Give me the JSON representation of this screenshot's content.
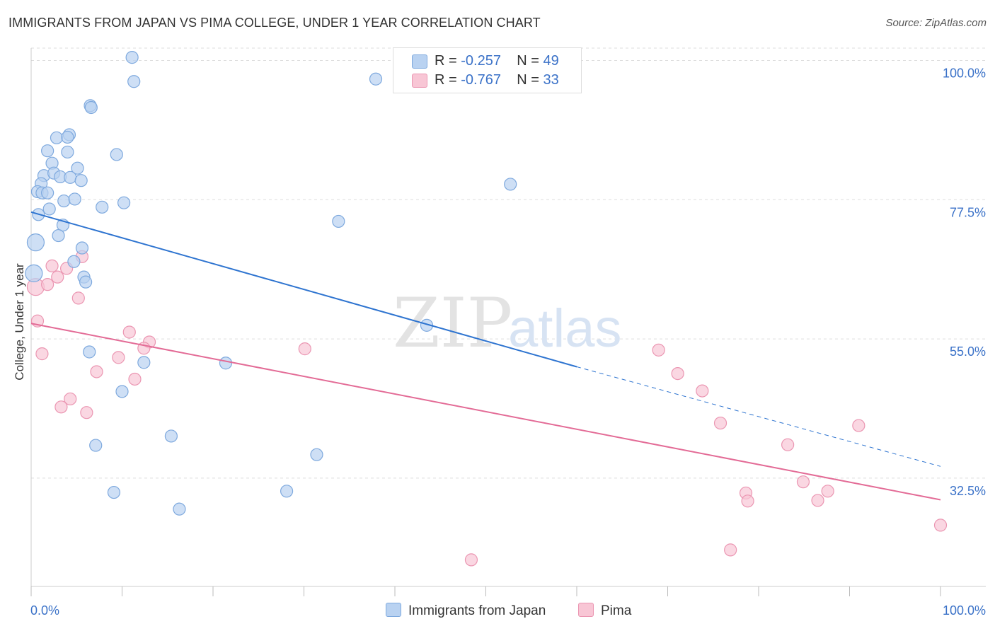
{
  "header": {
    "title": "IMMIGRANTS FROM JAPAN VS PIMA COLLEGE, UNDER 1 YEAR CORRELATION CHART",
    "source": "Source: ZipAtlas.com"
  },
  "watermark": {
    "zip": "ZIP",
    "atlas": "atlas"
  },
  "legend": {
    "r_label": "R =",
    "n_label": "N =",
    "rows": [
      {
        "r": "-0.257",
        "n": "49"
      },
      {
        "r": "-0.767",
        "n": "33"
      }
    ]
  },
  "colors": {
    "blue_fill": "#b9d2f1",
    "blue_stroke": "#7ea9de",
    "blue_line": "#2e74d0",
    "pink_fill": "#f8c6d5",
    "pink_stroke": "#eb96b2",
    "pink_line": "#e36b96",
    "tick_label": "#3b72c8",
    "grid": "#dddddd"
  },
  "chart_data": {
    "type": "scatter",
    "title": "IMMIGRANTS FROM JAPAN VS PIMA COLLEGE, UNDER 1 YEAR CORRELATION CHART",
    "xlabel": "",
    "ylabel": "College, Under 1 year",
    "xlim": [
      0,
      100
    ],
    "ylim": [
      15,
      102
    ],
    "x_tick_labels": [
      "0.0%",
      "100.0%"
    ],
    "y_ticks": [
      32.5,
      55.0,
      77.5,
      100.0
    ],
    "y_tick_labels": [
      "32.5%",
      "55.0%",
      "77.5%",
      "100.0%"
    ],
    "grid": true,
    "legend_position": "top-center",
    "series": [
      {
        "name": "Immigrants from Japan",
        "r": -0.257,
        "n": 49,
        "points": [
          [
            11.1,
            100.5
          ],
          [
            11.3,
            96.6
          ],
          [
            37.9,
            97.0
          ],
          [
            6.5,
            92.7
          ],
          [
            6.6,
            92.4
          ],
          [
            4.2,
            88.0
          ],
          [
            2.8,
            87.5
          ],
          [
            4.0,
            87.6
          ],
          [
            9.4,
            84.8
          ],
          [
            1.8,
            85.4
          ],
          [
            4.0,
            85.2
          ],
          [
            2.3,
            83.4
          ],
          [
            5.1,
            82.6
          ],
          [
            1.4,
            81.4
          ],
          [
            2.5,
            81.8
          ],
          [
            3.2,
            81.2
          ],
          [
            4.3,
            81.1
          ],
          [
            5.5,
            80.6
          ],
          [
            1.1,
            80.1
          ],
          [
            52.7,
            80.0
          ],
          [
            0.7,
            78.8
          ],
          [
            1.2,
            78.6
          ],
          [
            1.8,
            78.6
          ],
          [
            3.6,
            77.3
          ],
          [
            4.8,
            77.6
          ],
          [
            10.2,
            77.0
          ],
          [
            7.8,
            76.3
          ],
          [
            2.0,
            76.0
          ],
          [
            0.8,
            75.1
          ],
          [
            33.8,
            74.0
          ],
          [
            3.5,
            73.4
          ],
          [
            3.0,
            71.7
          ],
          [
            0.5,
            70.6
          ],
          [
            5.6,
            69.7
          ],
          [
            4.7,
            67.5
          ],
          [
            0.3,
            65.6
          ],
          [
            5.8,
            65.0
          ],
          [
            6.0,
            64.2
          ],
          [
            43.5,
            57.2
          ],
          [
            6.4,
            52.9
          ],
          [
            12.4,
            51.2
          ],
          [
            21.4,
            51.1
          ],
          [
            10.0,
            46.5
          ],
          [
            15.4,
            39.3
          ],
          [
            7.1,
            37.8
          ],
          [
            31.4,
            36.3
          ],
          [
            9.1,
            30.2
          ],
          [
            28.1,
            30.4
          ],
          [
            16.3,
            27.5
          ]
        ]
      },
      {
        "name": "Pima",
        "r": -0.767,
        "n": 33,
        "points": [
          [
            5.6,
            68.3
          ],
          [
            2.3,
            66.8
          ],
          [
            3.9,
            66.4
          ],
          [
            2.9,
            65.0
          ],
          [
            0.5,
            63.4
          ],
          [
            1.8,
            63.8
          ],
          [
            5.2,
            61.6
          ],
          [
            0.7,
            57.9
          ],
          [
            10.8,
            56.1
          ],
          [
            13.0,
            54.5
          ],
          [
            12.4,
            53.5
          ],
          [
            30.1,
            53.4
          ],
          [
            69.0,
            53.2
          ],
          [
            1.2,
            52.6
          ],
          [
            9.6,
            52.0
          ],
          [
            7.2,
            49.7
          ],
          [
            71.1,
            49.4
          ],
          [
            11.4,
            48.5
          ],
          [
            73.8,
            46.6
          ],
          [
            4.3,
            45.3
          ],
          [
            3.3,
            44.0
          ],
          [
            6.1,
            43.1
          ],
          [
            75.8,
            41.4
          ],
          [
            91.0,
            41.0
          ],
          [
            83.2,
            37.9
          ],
          [
            84.9,
            31.9
          ],
          [
            87.6,
            30.4
          ],
          [
            78.6,
            30.1
          ],
          [
            78.8,
            28.8
          ],
          [
            86.5,
            28.9
          ],
          [
            100.0,
            24.9
          ],
          [
            76.9,
            20.9
          ],
          [
            48.4,
            19.3
          ]
        ]
      }
    ],
    "trendlines": [
      {
        "series": "Immigrants from Japan",
        "x0": 0,
        "y0": 75.5,
        "x1": 60,
        "y1": 50.5,
        "dashed_to_x": 100,
        "dashed_to_y": 34.4
      },
      {
        "series": "Pima",
        "x0": 0,
        "y0": 57.5,
        "x1": 100,
        "y1": 29.0
      }
    ]
  }
}
